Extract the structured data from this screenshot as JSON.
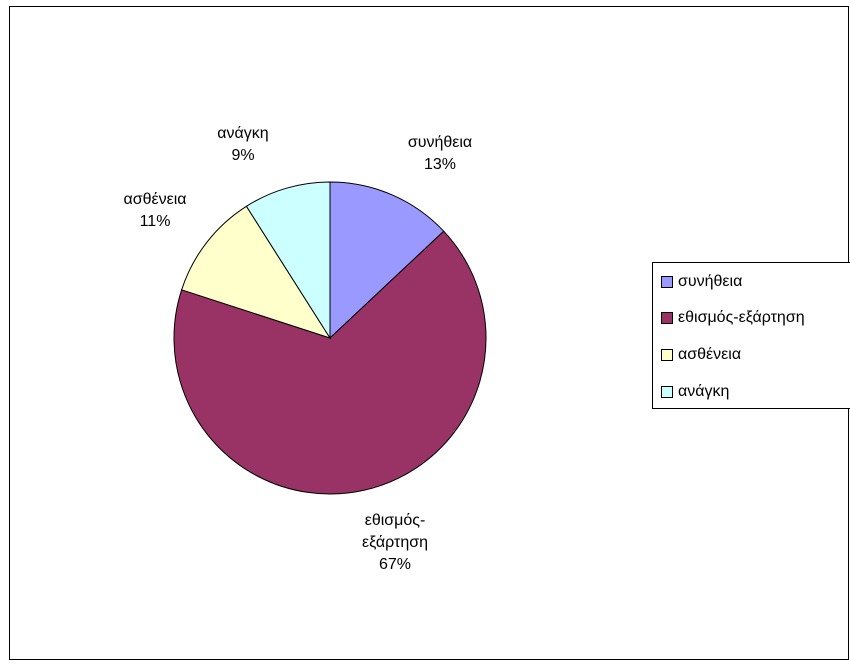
{
  "chart_data": {
    "type": "pie",
    "categories": [
      "συνήθεια",
      "εθισμός-εξάρτηση",
      "ασθένεια",
      "ανάγκη"
    ],
    "values": [
      13,
      67,
      11,
      9
    ],
    "percent_labels": [
      "13%",
      "67%",
      "11%",
      "9%"
    ],
    "slice_label_lines": [
      [
        "συνήθεια",
        "13%"
      ],
      [
        "εθισμός-",
        "εξάρτηση",
        "67%"
      ],
      [
        "ασθένεια",
        "11%"
      ],
      [
        "ανάγκη",
        "9%"
      ]
    ],
    "colors": [
      "#9999ff",
      "#993366",
      "#ffffcc",
      "#ccffff"
    ],
    "legend": [
      "συνήθεια",
      "εθισμός-εξάρτηση",
      "ασθένεια",
      "ανάγκη"
    ],
    "legend_position": "right",
    "start_angle": "12 o'clock",
    "direction": "clockwise"
  }
}
